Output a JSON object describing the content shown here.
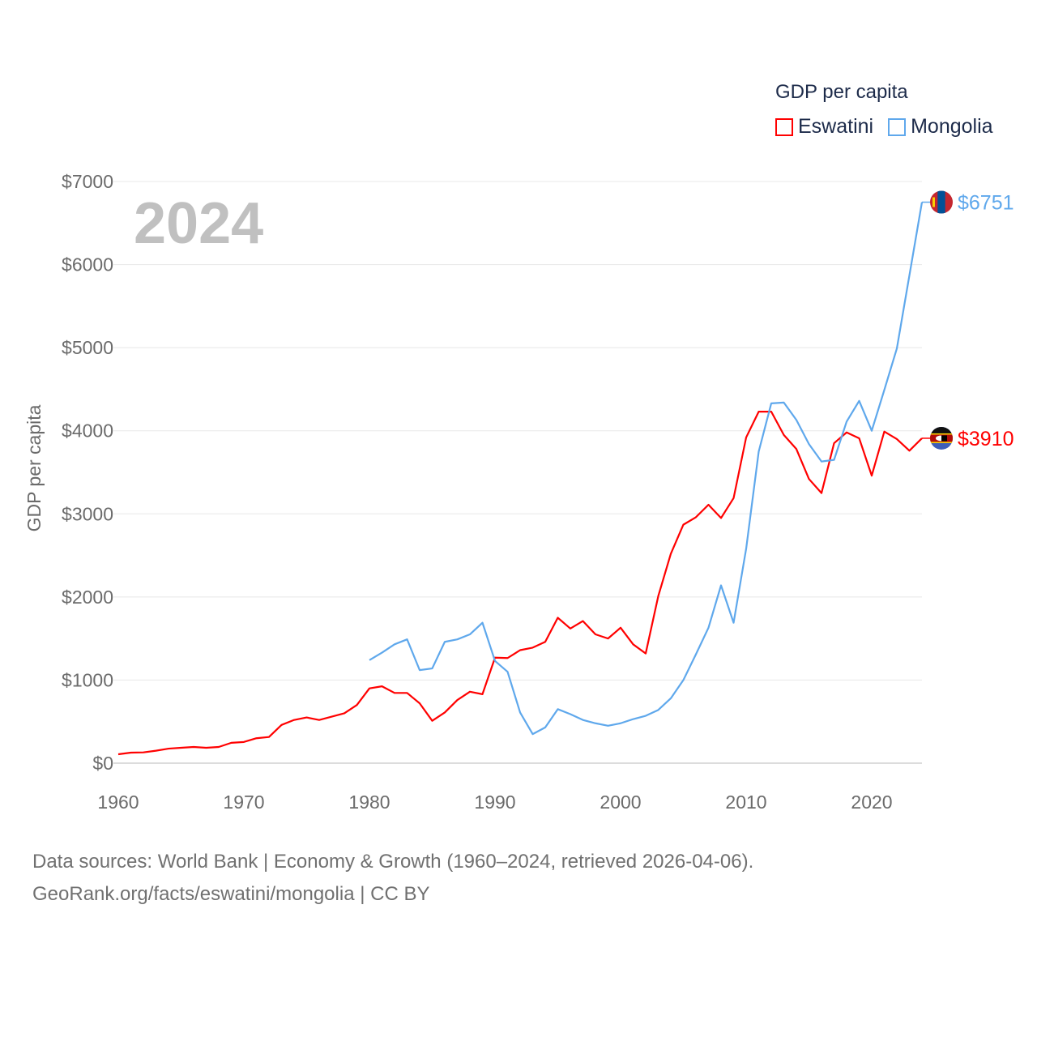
{
  "chart_data": {
    "type": "line",
    "legend_title": "GDP per capita",
    "ylabel": "GDP per capita",
    "xlabel": "",
    "year_label": "2024",
    "xlim": [
      1960,
      2024
    ],
    "ylim": [
      0,
      7000
    ],
    "x_ticks": [
      "1960",
      "1970",
      "1980",
      "1990",
      "2000",
      "2010",
      "2020"
    ],
    "y_ticks": [
      "$0",
      "$1000",
      "$2000",
      "$3000",
      "$4000",
      "$5000",
      "$6000",
      "$7000"
    ],
    "grid": true,
    "legend_position": "top-right",
    "series": [
      {
        "name": "Eswatini",
        "color": "#ff0000",
        "end_label": "$3910",
        "flag": "eswatini-flag",
        "start_year": 1960,
        "values": [
          107,
          127,
          130,
          150,
          175,
          185,
          195,
          185,
          195,
          245,
          255,
          300,
          315,
          460,
          520,
          550,
          520,
          560,
          600,
          700,
          900,
          925,
          845,
          845,
          720,
          510,
          610,
          760,
          860,
          830,
          1270,
          1265,
          1360,
          1390,
          1460,
          1750,
          1620,
          1710,
          1550,
          1500,
          1630,
          1430,
          1320,
          2010,
          2520,
          2870,
          2960,
          3110,
          2950,
          3190,
          3920,
          4230,
          4230,
          3950,
          3780,
          3420,
          3250,
          3850,
          3980,
          3910,
          3460,
          3990,
          3900,
          3760,
          3910
        ]
      },
      {
        "name": "Mongolia",
        "color": "#5fa8ec",
        "end_label": "$6751",
        "flag": "mongolia-flag",
        "start_year": 1980,
        "values": [
          1240,
          1330,
          1430,
          1490,
          1120,
          1140,
          1460,
          1490,
          1550,
          1690,
          1230,
          1100,
          610,
          350,
          430,
          650,
          590,
          520,
          480,
          450,
          480,
          530,
          570,
          640,
          780,
          1000,
          1310,
          1630,
          2140,
          1690,
          2580,
          3750,
          4330,
          4340,
          4130,
          3840,
          3630,
          3650,
          4110,
          4360,
          4000,
          4490,
          4990,
          5870,
          6751
        ]
      }
    ]
  },
  "footer": {
    "line1": "Data sources: World Bank | Economy & Growth (1960–2024, retrieved 2026-04-06).",
    "line2": "GeoRank.org/facts/eswatini/mongolia | CC BY"
  }
}
